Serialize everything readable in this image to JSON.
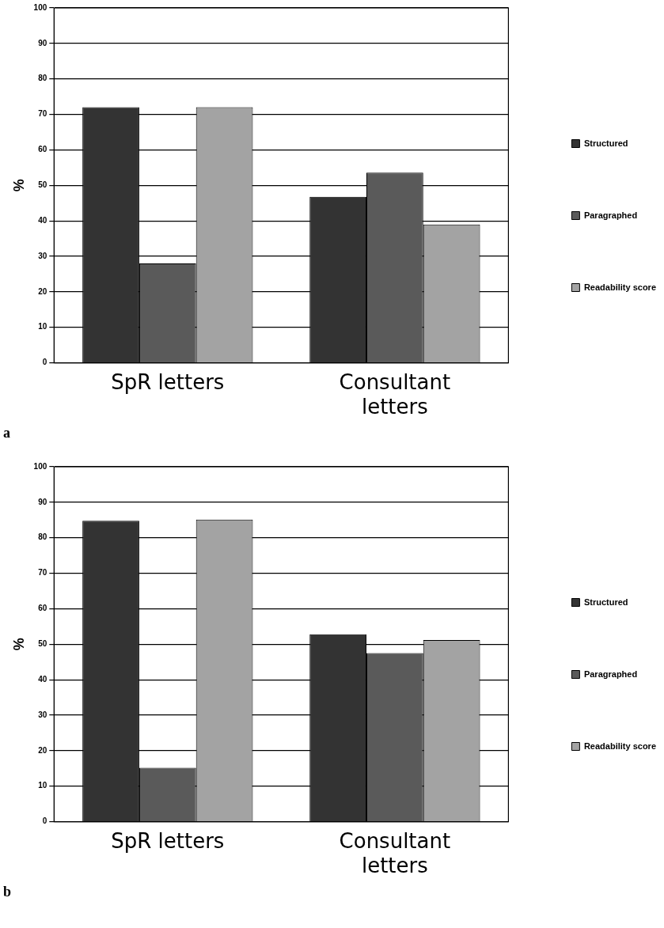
{
  "chart_data": [
    {
      "type": "bar",
      "ylabel": "%",
      "categories": [
        "SpR letters",
        "Consultant letters"
      ],
      "series": [
        {
          "name": "Structured",
          "color": "#333333",
          "values": [
            72,
            46.8
          ]
        },
        {
          "name": "Paragraphed",
          "color": "#5a5a5a",
          "values": [
            28,
            53.6
          ]
        },
        {
          "name": "Readability score",
          "color": "#a3a3a3",
          "values": [
            72,
            39
          ]
        }
      ],
      "ylim": [
        0,
        100
      ],
      "yticks": [
        0,
        10,
        20,
        30,
        40,
        50,
        60,
        70,
        80,
        90,
        100
      ],
      "grid": "y",
      "legend": "right",
      "annotations": [
        "a"
      ]
    },
    {
      "type": "bar",
      "ylabel": "%",
      "categories": [
        "SpR letters",
        "Consultant letters"
      ],
      "series": [
        {
          "name": "Structured",
          "color": "#333333",
          "values": [
            84.8,
            52.8
          ]
        },
        {
          "name": "Paragraphed",
          "color": "#5a5a5a",
          "values": [
            15.2,
            47.5
          ]
        },
        {
          "name": "Readability score",
          "color": "#a3a3a3",
          "values": [
            85.1,
            51.2
          ]
        }
      ],
      "ylim": [
        0,
        100
      ],
      "yticks": [
        0,
        10,
        20,
        30,
        40,
        50,
        60,
        70,
        80,
        90,
        100
      ],
      "grid": "y",
      "legend": "right",
      "annotations": [
        "b"
      ]
    }
  ]
}
